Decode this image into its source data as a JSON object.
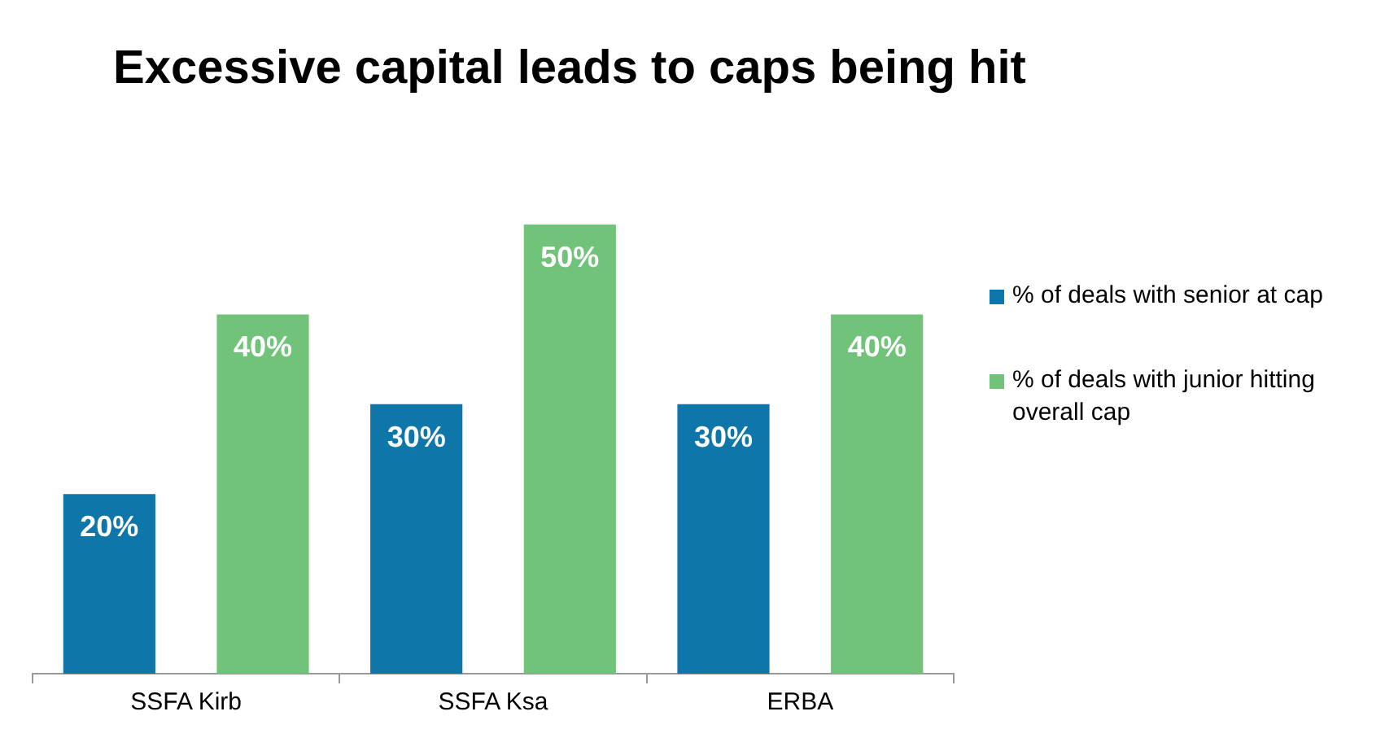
{
  "chart_data": {
    "type": "bar",
    "title": "Excessive capital leads to caps being hit",
    "categories": [
      "SSFA Kirb",
      "SSFA Ksa",
      "ERBA"
    ],
    "series": [
      {
        "name": "% of deals with senior at cap",
        "color": "#0f76a9",
        "values": [
          20,
          30,
          30
        ],
        "value_labels": [
          "20%",
          "30%",
          "30%"
        ]
      },
      {
        "name": "% of deals with junior hitting overall cap",
        "color": "#71c379",
        "values": [
          40,
          50,
          40
        ],
        "value_labels": [
          "40%",
          "50%",
          "40%"
        ]
      }
    ],
    "tick_labels": "x",
    "legend": "right",
    "grid": false
  }
}
